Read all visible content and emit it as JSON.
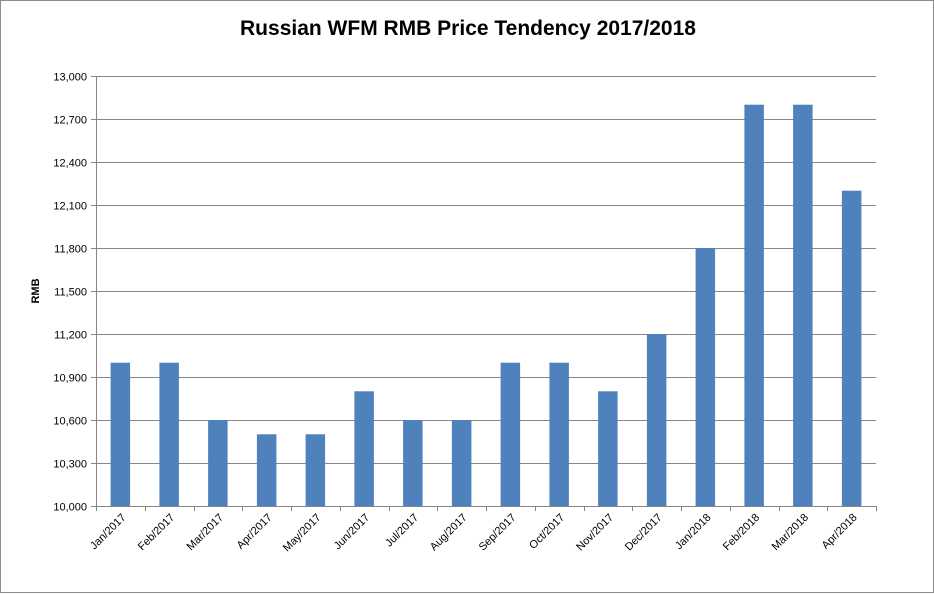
{
  "chart_data": {
    "type": "bar",
    "title": "Russian WFM RMB Price Tendency 2017/2018",
    "xlabel": "",
    "ylabel": "RMB",
    "ylim": [
      10000,
      13000
    ],
    "yticks": [
      "10,000",
      "10,300",
      "10,600",
      "10,900",
      "11,200",
      "11,500",
      "11,800",
      "12,100",
      "12,400",
      "12,700",
      "13,000"
    ],
    "ytick_values": [
      10000,
      10300,
      10600,
      10900,
      11200,
      11500,
      11800,
      12100,
      12400,
      12700,
      13000
    ],
    "grid": true,
    "legend": "none",
    "bar_color": "#4f81bd",
    "categories": [
      "Jan/2017",
      "Feb/2017",
      "Mar/2017",
      "Apr/2017",
      "May/2017",
      "Jun/2017",
      "Jul/2017",
      "Aug/2017",
      "Sep/2017",
      "Oct/2017",
      "Nov/2017",
      "Dec/2017",
      "Jan/2018",
      "Feb/2018",
      "Mar/2018",
      "Apr/2018"
    ],
    "values": [
      11000,
      11000,
      10600,
      10500,
      10500,
      10800,
      10600,
      10600,
      11000,
      11000,
      10800,
      11200,
      11800,
      12800,
      12800,
      12200
    ]
  }
}
